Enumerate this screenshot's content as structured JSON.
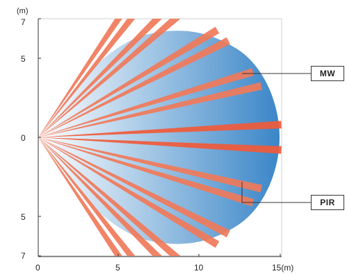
{
  "axes": {
    "unit_label": "(m)",
    "x_ticks": [
      "0",
      "5",
      "10",
      "15(m)"
    ],
    "y_ticks_top": [
      "7",
      "5"
    ],
    "y_tick_center": "0",
    "y_ticks_bottom": [
      "5",
      "7"
    ]
  },
  "legend": {
    "mw_label": "MW",
    "pir_label": "PIR"
  },
  "colors": {
    "mw_gradient_start": "#ffffff",
    "mw_gradient_end": "#3a86c8",
    "pir_beam": "#f07a5a",
    "pir_beam_center": "#f05a3a",
    "grid_line": "#d0d0d0",
    "axis_line": "#333333"
  },
  "pir_beam_angles_deg": [
    -56,
    -52,
    -45,
    -41,
    -31,
    -27,
    -17,
    -13,
    -3,
    3,
    13,
    17,
    27,
    31,
    41,
    45,
    52,
    56
  ]
}
